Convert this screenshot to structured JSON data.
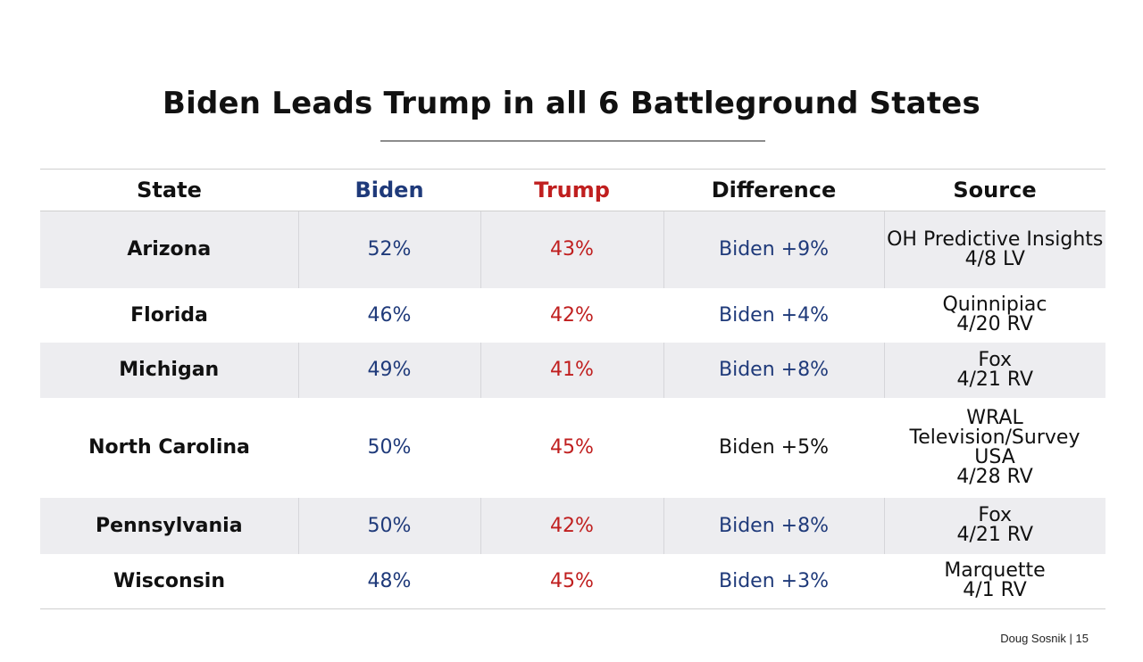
{
  "title": "Biden Leads Trump in all 6 Battleground States",
  "table": {
    "headers": {
      "state": "State",
      "biden": "Biden",
      "trump": "Trump",
      "difference": "Difference",
      "source": "Source"
    },
    "rows": [
      {
        "state": "Arizona",
        "biden": "52%",
        "trump": "43%",
        "difference": "Biden +9%",
        "source_lines": [
          "OH Predictive Insights",
          "4/8 LV"
        ]
      },
      {
        "state": "Florida",
        "biden": "46%",
        "trump": "42%",
        "difference": "Biden +4%",
        "source_lines": [
          "Quinnipiac",
          "4/20 RV"
        ]
      },
      {
        "state": "Michigan",
        "biden": "49%",
        "trump": "41%",
        "difference": "Biden +8%",
        "source_lines": [
          "Fox",
          "4/21 RV"
        ]
      },
      {
        "state": "North Carolina",
        "biden": "50%",
        "trump": "45%",
        "difference": "Biden +5%",
        "source_lines": [
          "WRAL Television/Survey",
          "USA",
          "4/28 RV"
        ]
      },
      {
        "state": "Pennsylvania",
        "biden": "50%",
        "trump": "42%",
        "difference": "Biden +8%",
        "source_lines": [
          "Fox",
          "4/21 RV"
        ]
      },
      {
        "state": "Wisconsin",
        "biden": "48%",
        "trump": "45%",
        "difference": "Biden +3%",
        "source_lines": [
          "Marquette",
          "4/1 RV"
        ]
      }
    ]
  },
  "footer": "Doug Sosnik | 15",
  "colors": {
    "biden": "#1f3a7a",
    "trump": "#c01f1f",
    "row_shade": "#ededf0"
  }
}
